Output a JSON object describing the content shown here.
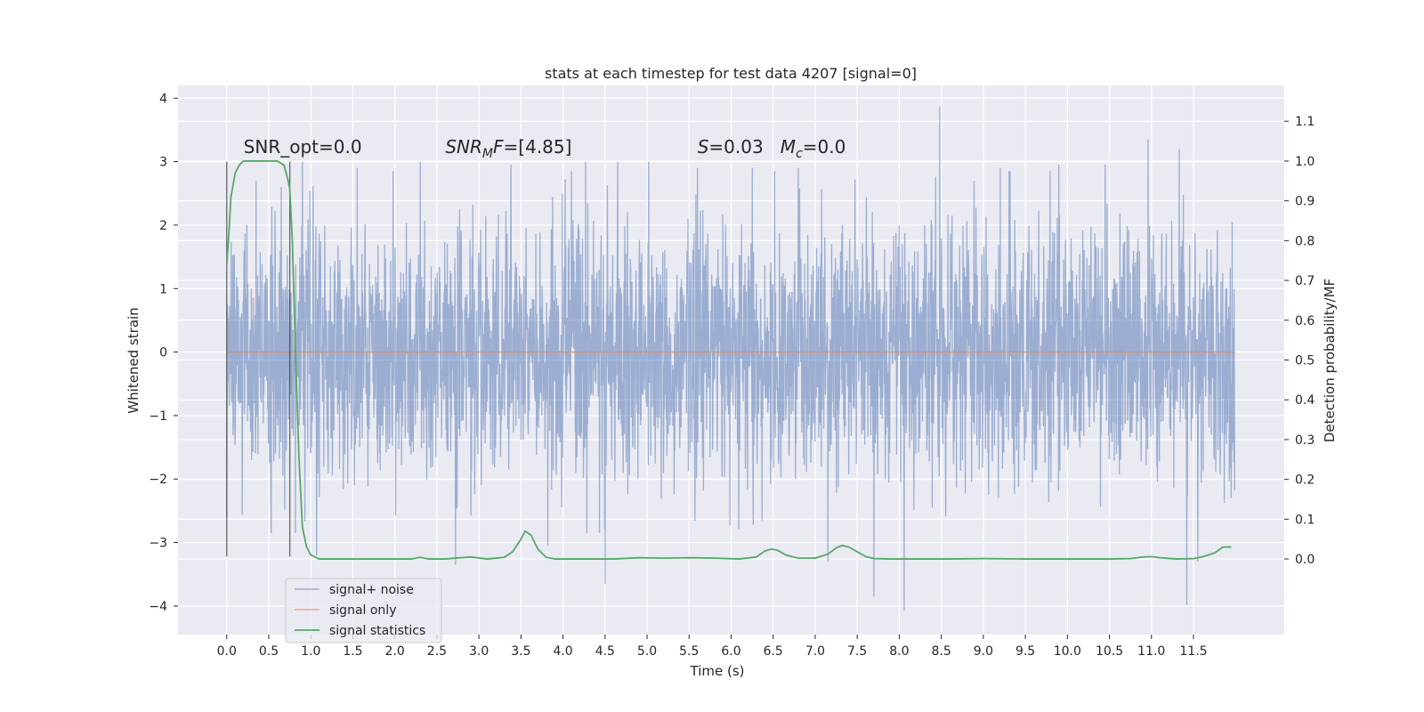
{
  "chart_data": {
    "type": "line",
    "title": "stats at each timestep for test data 4207 [signal=0]",
    "xlabel": "Time (s)",
    "ylabel": "Whitened strain",
    "y2label": "Detection probability/MF",
    "xlim": [
      -0.58,
      12.58
    ],
    "ylim": [
      -4.45,
      4.2
    ],
    "y2lim": [
      -0.19,
      1.19
    ],
    "x_ticks": [
      0.0,
      0.5,
      1.0,
      1.5,
      2.0,
      2.5,
      3.0,
      3.5,
      4.0,
      4.5,
      5.0,
      5.5,
      6.0,
      6.5,
      7.0,
      7.5,
      8.0,
      8.5,
      9.0,
      9.5,
      10.0,
      10.5,
      11.0,
      11.5
    ],
    "x_tick_labels": [
      "0.0",
      "0.5",
      "1.0",
      "1.5",
      "2.0",
      "2.5",
      "3.0",
      "3.5",
      "4.0",
      "4.5",
      "5.0",
      "5.5",
      "6.0",
      "6.5",
      "7.0",
      "7.5",
      "8.0",
      "8.5",
      "9.0",
      "9.5",
      "10.0",
      "10.5",
      "11.0",
      "11.5"
    ],
    "y_ticks": [
      -4,
      -3,
      -2,
      -1,
      0,
      1,
      2,
      3,
      4
    ],
    "y_tick_labels": [
      "−4",
      "−3",
      "−2",
      "−1",
      "0",
      "1",
      "2",
      "3",
      "4"
    ],
    "y2_ticks": [
      0.0,
      0.1,
      0.2,
      0.3,
      0.4,
      0.5,
      0.6,
      0.7,
      0.8,
      0.9,
      1.0,
      1.1
    ],
    "y2_tick_labels": [
      "0.0",
      "0.1",
      "0.2",
      "0.3",
      "0.4",
      "0.5",
      "0.6",
      "0.7",
      "0.8",
      "0.9",
      "1.0",
      "1.1"
    ],
    "grid": true,
    "legend_position": "lower-left",
    "annotations": [
      {
        "text": "SNR_opt=0.0",
        "x": 0.2,
        "y": 3.05
      },
      {
        "text": "SNR_MF=[4.85]",
        "x": 2.6,
        "y": 3.05
      },
      {
        "text": "S=0.03   M_c=0.0",
        "x": 5.6,
        "y": 3.05
      }
    ],
    "window_markers": [
      {
        "x": 0.0,
        "y": [
          -3.22,
          3.0
        ]
      },
      {
        "x": 0.75,
        "y": [
          -3.22,
          3.0
        ]
      }
    ],
    "series": [
      {
        "name": "signal+ noise",
        "color": "#4c72b0",
        "x_range": [
          0.0,
          11.99
        ],
        "typical_amplitude": 1.2,
        "peaks": [
          {
            "x": 0.0,
            "y": 2.25
          },
          {
            "x": 0.0,
            "y": -2.6
          },
          {
            "x": 0.35,
            "y": 2.7
          },
          {
            "x": 0.65,
            "y": 2.6
          },
          {
            "x": 0.9,
            "y": 3.0
          },
          {
            "x": 1.07,
            "y": -3.2
          },
          {
            "x": 1.55,
            "y": 2.9
          },
          {
            "x": 2.3,
            "y": 3.0
          },
          {
            "x": 2.72,
            "y": -3.35
          },
          {
            "x": 3.38,
            "y": 2.95
          },
          {
            "x": 3.82,
            "y": -3.05
          },
          {
            "x": 4.1,
            "y": 2.85
          },
          {
            "x": 4.27,
            "y": 3.0
          },
          {
            "x": 4.5,
            "y": -3.65
          },
          {
            "x": 4.65,
            "y": 3.0
          },
          {
            "x": 5.02,
            "y": 3.0
          },
          {
            "x": 5.6,
            "y": 2.9
          },
          {
            "x": 6.25,
            "y": 2.9
          },
          {
            "x": 6.8,
            "y": 2.9
          },
          {
            "x": 7.15,
            "y": -3.3
          },
          {
            "x": 7.7,
            "y": -3.85
          },
          {
            "x": 8.06,
            "y": -4.08
          },
          {
            "x": 8.48,
            "y": 3.87
          },
          {
            "x": 9.2,
            "y": 2.9
          },
          {
            "x": 9.9,
            "y": 2.95
          },
          {
            "x": 10.45,
            "y": 2.95
          },
          {
            "x": 10.96,
            "y": 3.35
          },
          {
            "x": 11.33,
            "y": 3.2
          },
          {
            "x": 11.42,
            "y": -3.98
          },
          {
            "x": 11.55,
            "y": -3.3
          },
          {
            "x": 11.95,
            "y": 2.45
          },
          {
            "x": 11.95,
            "y": -2.3
          }
        ]
      },
      {
        "name": "signal only",
        "color": "#dd8452",
        "x": [
          0.0,
          11.99
        ],
        "y": [
          0.0,
          0.0
        ]
      },
      {
        "name": "signal statistics",
        "color": "#55a868",
        "axis": "right",
        "x": [
          0.0,
          0.02,
          0.05,
          0.1,
          0.15,
          0.2,
          0.3,
          0.45,
          0.6,
          0.68,
          0.72,
          0.75,
          0.78,
          0.82,
          0.86,
          0.9,
          0.95,
          1.0,
          1.1,
          1.3,
          1.6,
          2.0,
          2.2,
          2.3,
          2.4,
          2.6,
          2.9,
          3.1,
          3.3,
          3.4,
          3.5,
          3.55,
          3.62,
          3.7,
          3.8,
          3.9,
          4.0,
          4.4,
          4.6,
          4.9,
          5.2,
          5.5,
          5.8,
          6.1,
          6.3,
          6.4,
          6.48,
          6.55,
          6.65,
          6.8,
          7.0,
          7.15,
          7.25,
          7.32,
          7.4,
          7.5,
          7.6,
          7.7,
          7.9,
          8.2,
          8.6,
          9.0,
          9.5,
          10.0,
          10.5,
          10.75,
          10.9,
          11.0,
          11.1,
          11.3,
          11.5,
          11.6,
          11.75,
          11.85,
          11.95
        ],
        "y": [
          0.74,
          0.8,
          0.91,
          0.97,
          0.99,
          1.0,
          1.0,
          1.0,
          1.0,
          0.99,
          0.96,
          0.93,
          0.8,
          0.5,
          0.25,
          0.08,
          0.03,
          0.01,
          0.0,
          0.0,
          0.0,
          0.0,
          0.0,
          0.004,
          0.0,
          0.0,
          0.005,
          0.0,
          0.004,
          0.018,
          0.05,
          0.07,
          0.06,
          0.025,
          0.004,
          0.0,
          0.0,
          0.0,
          0.0,
          0.003,
          0.002,
          0.003,
          0.002,
          0.0,
          0.005,
          0.02,
          0.025,
          0.022,
          0.01,
          0.002,
          0.002,
          0.012,
          0.028,
          0.034,
          0.03,
          0.018,
          0.006,
          0.001,
          0.0,
          0.0,
          0.0,
          0.001,
          0.0,
          0.0,
          0.0,
          0.001,
          0.005,
          0.006,
          0.003,
          0.0,
          0.001,
          0.005,
          0.015,
          0.03,
          0.03
        ]
      }
    ]
  }
}
